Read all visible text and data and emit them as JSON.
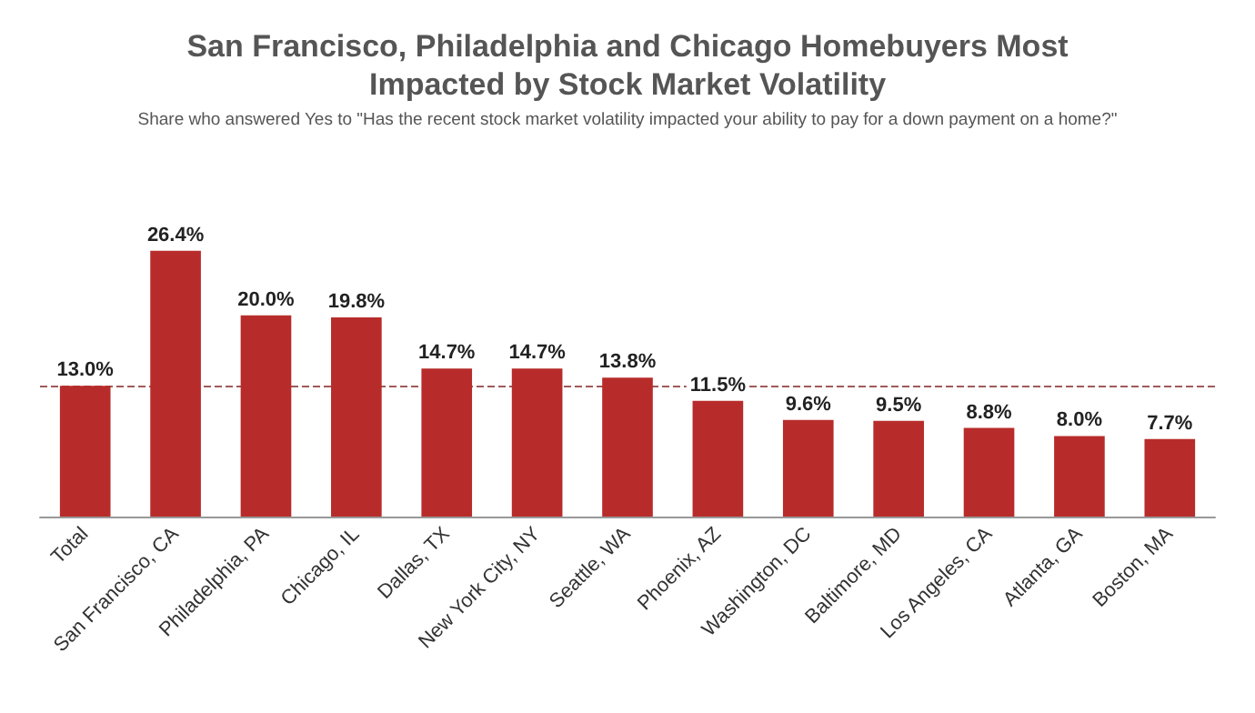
{
  "chart_data": {
    "type": "bar",
    "title": "San Francisco, Philadelphia and Chicago Homebuyers Most\nImpacted by Stock Market Volatility",
    "subtitle": "Share who answered Yes to \"Has the recent stock market volatility impacted your ability to pay for a down payment on a home?\"",
    "categories": [
      "Total",
      "San Francisco, CA",
      "Philadelphia, PA",
      "Chicago, IL",
      "Dallas, TX",
      "New York City, NY",
      "Seattle, WA",
      "Phoenix, AZ",
      "Washington, DC",
      "Baltimore, MD",
      "Los Angeles, CA",
      "Atlanta, GA",
      "Boston, MA"
    ],
    "values": [
      13.0,
      26.4,
      20.0,
      19.8,
      14.7,
      14.7,
      13.8,
      11.5,
      9.6,
      9.5,
      8.8,
      8.0,
      7.7
    ],
    "value_labels": [
      "13.0%",
      "26.4%",
      "20.0%",
      "19.8%",
      "14.7%",
      "14.7%",
      "13.8%",
      "11.5%",
      "9.6%",
      "9.5%",
      "8.8%",
      "8.0%",
      "7.7%"
    ],
    "color": "#b72c2a",
    "ref_lines": [
      {
        "axis": "y",
        "value": 13.0,
        "color": "#a05a5a",
        "line_style": "dashed"
      }
    ],
    "tick_labels": "x"
  }
}
